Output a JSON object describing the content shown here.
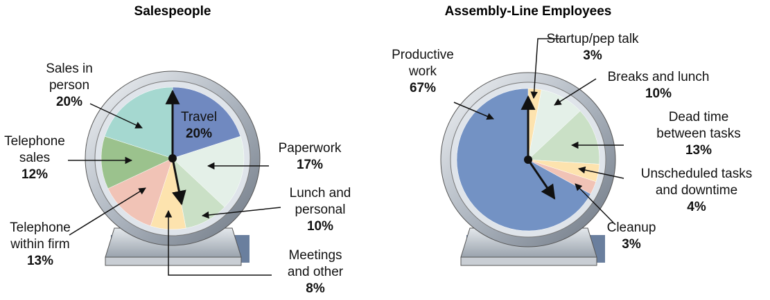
{
  "chart_data": [
    {
      "type": "pie",
      "title": "Salespeople",
      "categories": [
        "Travel",
        "Paperwork",
        "Lunch and personal",
        "Meetings and other",
        "Telephone within firm",
        "Telephone sales",
        "Sales in person"
      ],
      "values": [
        20,
        17,
        10,
        8,
        13,
        12,
        20
      ],
      "value_labels": [
        "20%",
        "17%",
        "10%",
        "8%",
        "13%",
        "12%",
        "20%"
      ],
      "colors": [
        "#7089c0",
        "#e4f0e8",
        "#cae0c6",
        "#fde3ae",
        "#f1c3b6",
        "#9bc28d",
        "#a5d8d0"
      ]
    },
    {
      "type": "pie",
      "title": "Assembly-Line Employees",
      "categories": [
        "Startup/pep talk",
        "Breaks and lunch",
        "Dead time between tasks",
        "Unscheduled tasks and downtime",
        "Cleanup",
        "Productive work"
      ],
      "values": [
        3,
        10,
        13,
        4,
        3,
        67
      ],
      "value_labels": [
        "3%",
        "10%",
        "13%",
        "4%",
        "3%",
        "67%"
      ],
      "colors": [
        "#fde3ae",
        "#e4f0e8",
        "#cae0c6",
        "#fde3ae",
        "#f1c3b6",
        "#7392c4"
      ]
    }
  ]
}
